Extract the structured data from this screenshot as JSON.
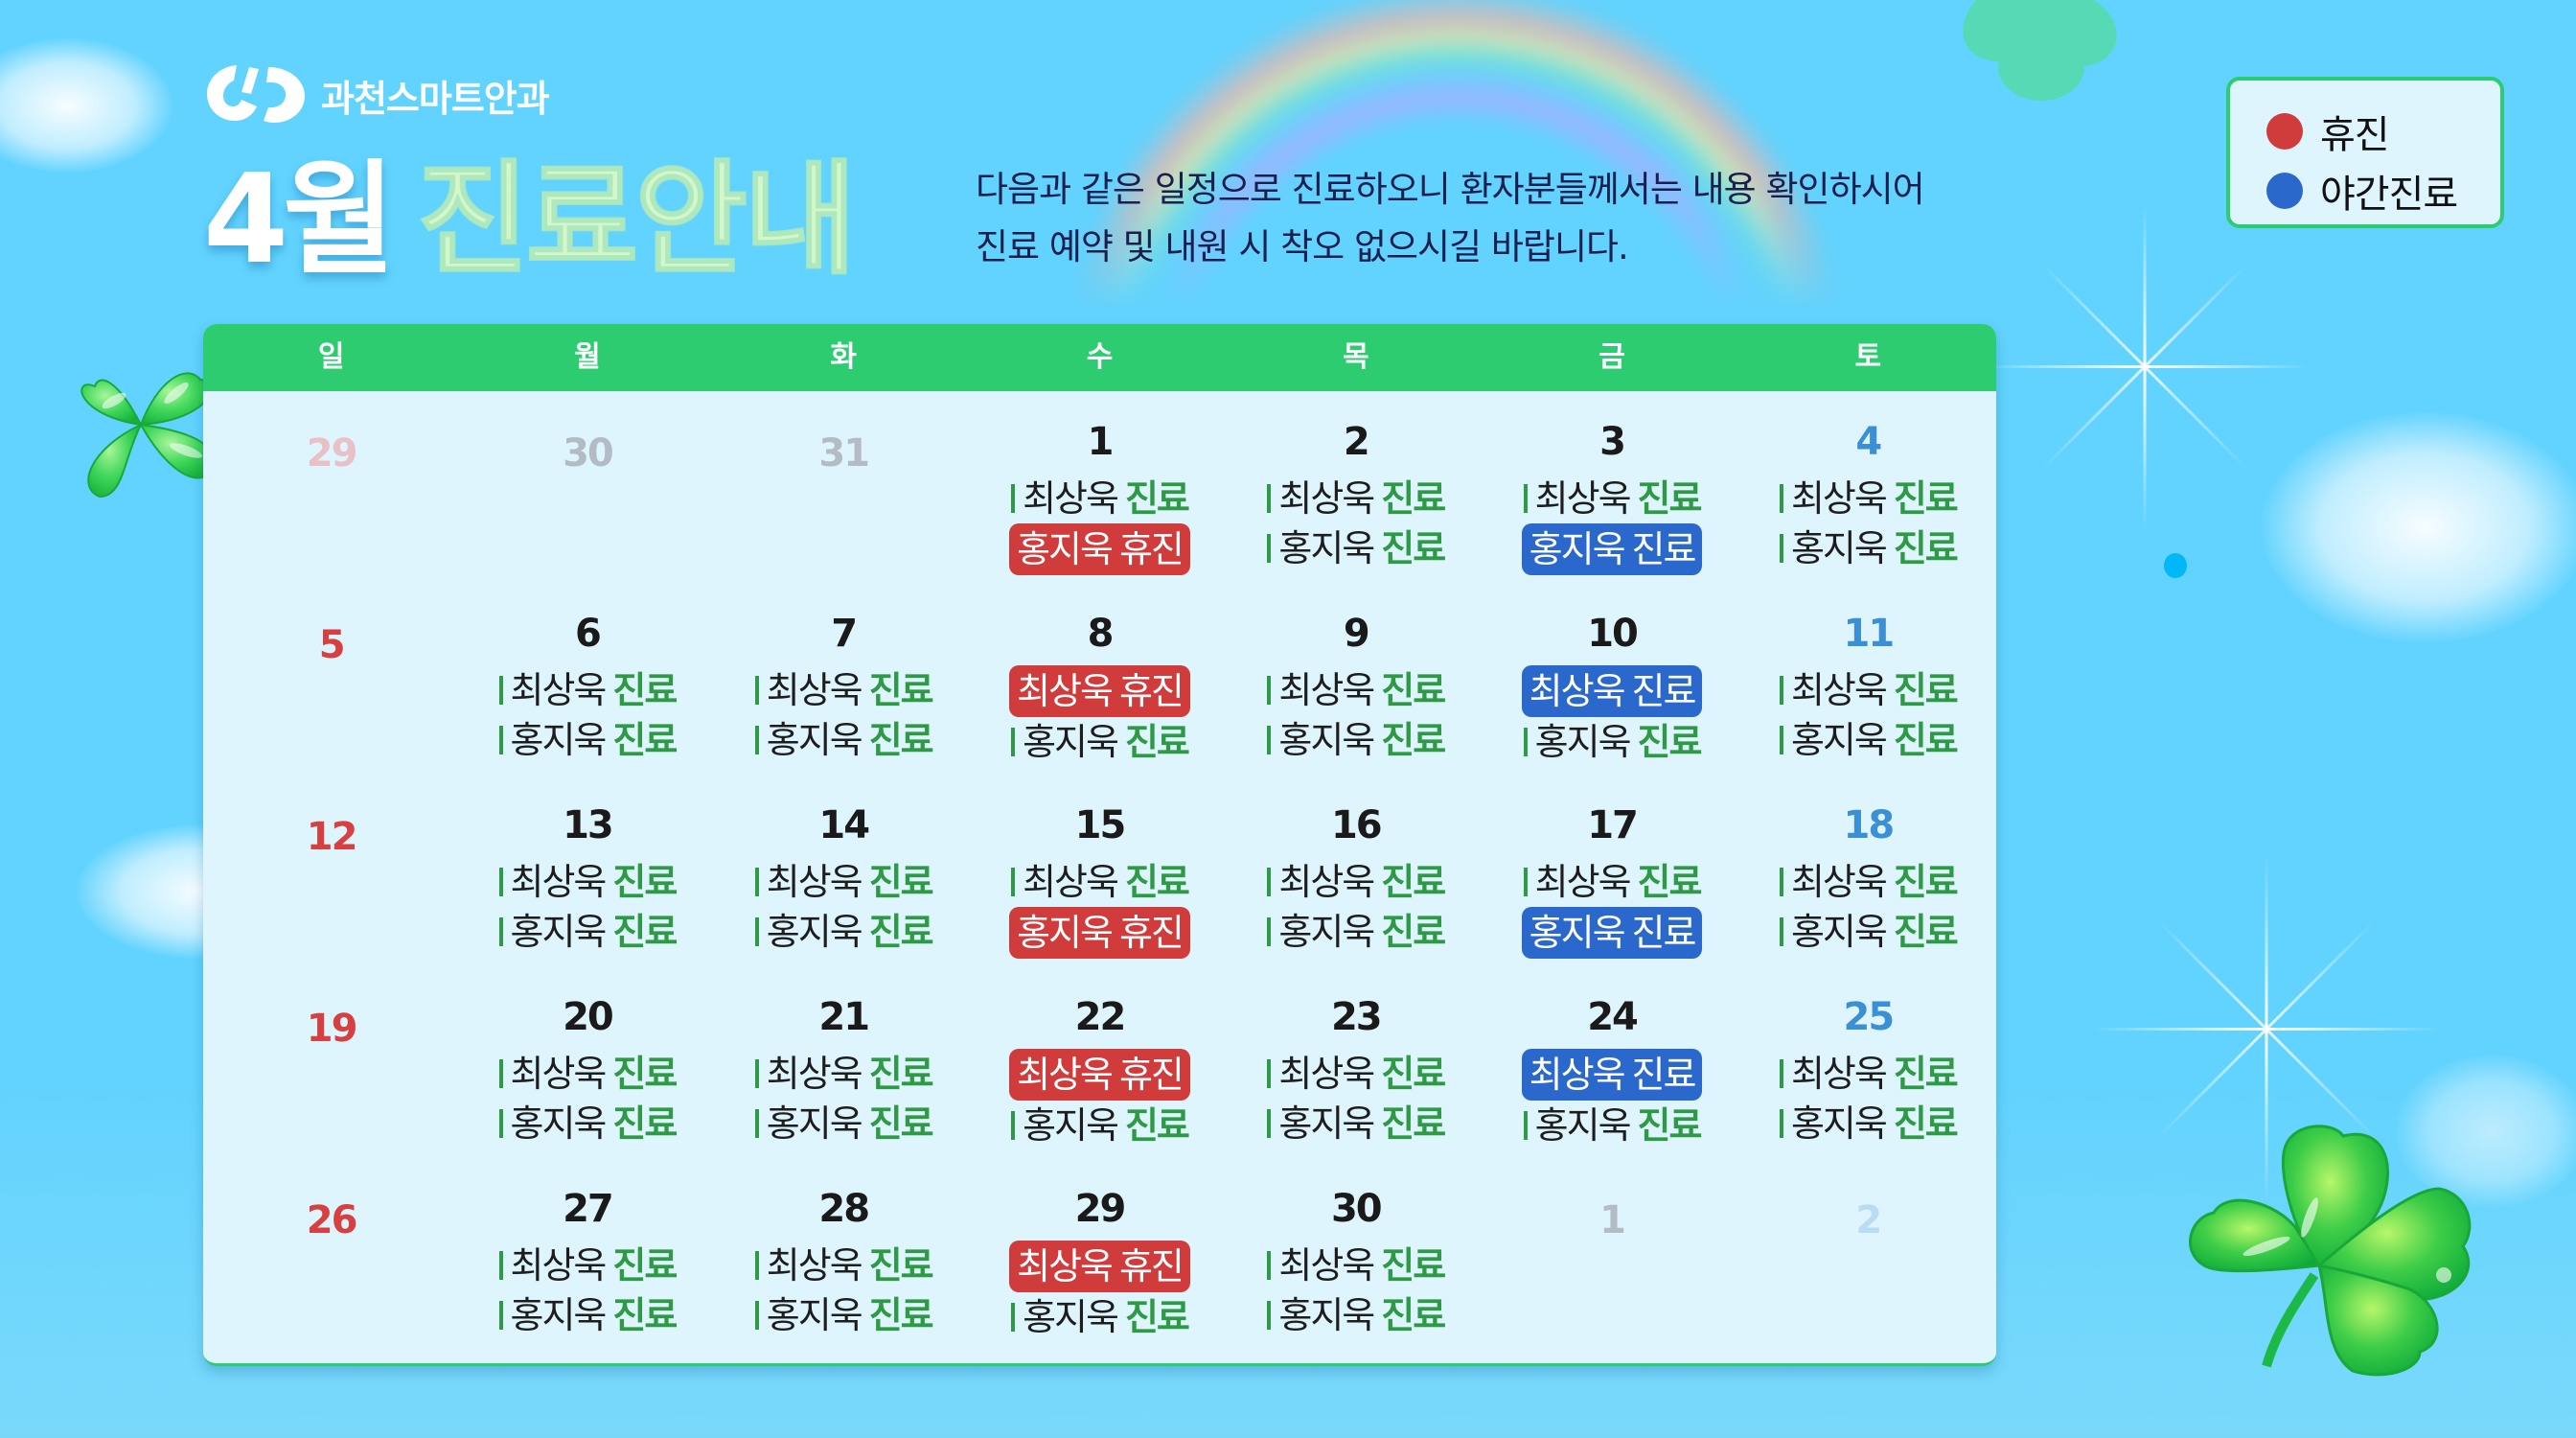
{
  "header": {
    "clinic_name": "과천스마트안과",
    "title_month": "4월",
    "title_main": "진료안내",
    "description_lines": [
      "다음과 같은 일정으로 진료하오니 환자분들께서는 내용 확인하시어",
      "진료 예약 및 내원 시 착오 없으시길 바랍니다."
    ]
  },
  "legend": {
    "items": [
      {
        "label": "휴진",
        "color": "#d03c3c",
        "icon": "red-dot-icon"
      },
      {
        "label": "야간진료",
        "color": "#2a68cc",
        "icon": "blue-dot-icon"
      }
    ]
  },
  "colors": {
    "header_green": "#2ecc71",
    "status_green": "#2e9a45",
    "closed_red": "#d03c3c",
    "night_blue": "#2a68cc",
    "sunday_red": "#d64040",
    "saturday_blue": "#3b8fd4",
    "background_sky": "#62d3fe",
    "calendar_bg": "#dff5fd"
  },
  "calendar": {
    "weekdays": [
      "일",
      "월",
      "화",
      "수",
      "목",
      "금",
      "토"
    ],
    "weeks": [
      [
        {
          "day": "29",
          "type": "prev",
          "entries": []
        },
        {
          "day": "30",
          "type": "prev",
          "entries": []
        },
        {
          "day": "31",
          "type": "prev",
          "entries": []
        },
        {
          "day": "1",
          "type": "cur",
          "entries": [
            {
              "doctor": "최상욱",
              "status": "진료",
              "style": "normal"
            },
            {
              "doctor": "홍지욱",
              "status": "휴진",
              "style": "closed"
            }
          ]
        },
        {
          "day": "2",
          "type": "cur",
          "entries": [
            {
              "doctor": "최상욱",
              "status": "진료",
              "style": "normal"
            },
            {
              "doctor": "홍지욱",
              "status": "진료",
              "style": "normal"
            }
          ]
        },
        {
          "day": "3",
          "type": "cur",
          "entries": [
            {
              "doctor": "최상욱",
              "status": "진료",
              "style": "normal"
            },
            {
              "doctor": "홍지욱",
              "status": "진료",
              "style": "night"
            }
          ]
        },
        {
          "day": "4",
          "type": "cur",
          "entries": [
            {
              "doctor": "최상욱",
              "status": "진료",
              "style": "normal"
            },
            {
              "doctor": "홍지욱",
              "status": "진료",
              "style": "normal"
            }
          ]
        }
      ],
      [
        {
          "day": "5",
          "type": "cur",
          "entries": []
        },
        {
          "day": "6",
          "type": "cur",
          "entries": [
            {
              "doctor": "최상욱",
              "status": "진료",
              "style": "normal"
            },
            {
              "doctor": "홍지욱",
              "status": "진료",
              "style": "normal"
            }
          ]
        },
        {
          "day": "7",
          "type": "cur",
          "entries": [
            {
              "doctor": "최상욱",
              "status": "진료",
              "style": "normal"
            },
            {
              "doctor": "홍지욱",
              "status": "진료",
              "style": "normal"
            }
          ]
        },
        {
          "day": "8",
          "type": "cur",
          "entries": [
            {
              "doctor": "최상욱",
              "status": "휴진",
              "style": "closed"
            },
            {
              "doctor": "홍지욱",
              "status": "진료",
              "style": "normal"
            }
          ]
        },
        {
          "day": "9",
          "type": "cur",
          "entries": [
            {
              "doctor": "최상욱",
              "status": "진료",
              "style": "normal"
            },
            {
              "doctor": "홍지욱",
              "status": "진료",
              "style": "normal"
            }
          ]
        },
        {
          "day": "10",
          "type": "cur",
          "entries": [
            {
              "doctor": "최상욱",
              "status": "진료",
              "style": "night"
            },
            {
              "doctor": "홍지욱",
              "status": "진료",
              "style": "normal"
            }
          ]
        },
        {
          "day": "11",
          "type": "cur",
          "entries": [
            {
              "doctor": "최상욱",
              "status": "진료",
              "style": "normal"
            },
            {
              "doctor": "홍지욱",
              "status": "진료",
              "style": "normal"
            }
          ]
        }
      ],
      [
        {
          "day": "12",
          "type": "cur",
          "entries": []
        },
        {
          "day": "13",
          "type": "cur",
          "entries": [
            {
              "doctor": "최상욱",
              "status": "진료",
              "style": "normal"
            },
            {
              "doctor": "홍지욱",
              "status": "진료",
              "style": "normal"
            }
          ]
        },
        {
          "day": "14",
          "type": "cur",
          "entries": [
            {
              "doctor": "최상욱",
              "status": "진료",
              "style": "normal"
            },
            {
              "doctor": "홍지욱",
              "status": "진료",
              "style": "normal"
            }
          ]
        },
        {
          "day": "15",
          "type": "cur",
          "entries": [
            {
              "doctor": "최상욱",
              "status": "진료",
              "style": "normal"
            },
            {
              "doctor": "홍지욱",
              "status": "휴진",
              "style": "closed"
            }
          ]
        },
        {
          "day": "16",
          "type": "cur",
          "entries": [
            {
              "doctor": "최상욱",
              "status": "진료",
              "style": "normal"
            },
            {
              "doctor": "홍지욱",
              "status": "진료",
              "style": "normal"
            }
          ]
        },
        {
          "day": "17",
          "type": "cur",
          "entries": [
            {
              "doctor": "최상욱",
              "status": "진료",
              "style": "normal"
            },
            {
              "doctor": "홍지욱",
              "status": "진료",
              "style": "night"
            }
          ]
        },
        {
          "day": "18",
          "type": "cur",
          "entries": [
            {
              "doctor": "최상욱",
              "status": "진료",
              "style": "normal"
            },
            {
              "doctor": "홍지욱",
              "status": "진료",
              "style": "normal"
            }
          ]
        }
      ],
      [
        {
          "day": "19",
          "type": "cur",
          "entries": []
        },
        {
          "day": "20",
          "type": "cur",
          "entries": [
            {
              "doctor": "최상욱",
              "status": "진료",
              "style": "normal"
            },
            {
              "doctor": "홍지욱",
              "status": "진료",
              "style": "normal"
            }
          ]
        },
        {
          "day": "21",
          "type": "cur",
          "entries": [
            {
              "doctor": "최상욱",
              "status": "진료",
              "style": "normal"
            },
            {
              "doctor": "홍지욱",
              "status": "진료",
              "style": "normal"
            }
          ]
        },
        {
          "day": "22",
          "type": "cur",
          "entries": [
            {
              "doctor": "최상욱",
              "status": "휴진",
              "style": "closed"
            },
            {
              "doctor": "홍지욱",
              "status": "진료",
              "style": "normal"
            }
          ]
        },
        {
          "day": "23",
          "type": "cur",
          "entries": [
            {
              "doctor": "최상욱",
              "status": "진료",
              "style": "normal"
            },
            {
              "doctor": "홍지욱",
              "status": "진료",
              "style": "normal"
            }
          ]
        },
        {
          "day": "24",
          "type": "cur",
          "entries": [
            {
              "doctor": "최상욱",
              "status": "진료",
              "style": "night"
            },
            {
              "doctor": "홍지욱",
              "status": "진료",
              "style": "normal"
            }
          ]
        },
        {
          "day": "25",
          "type": "cur",
          "entries": [
            {
              "doctor": "최상욱",
              "status": "진료",
              "style": "normal"
            },
            {
              "doctor": "홍지욱",
              "status": "진료",
              "style": "normal"
            }
          ]
        }
      ],
      [
        {
          "day": "26",
          "type": "cur",
          "entries": []
        },
        {
          "day": "27",
          "type": "cur",
          "entries": [
            {
              "doctor": "최상욱",
              "status": "진료",
              "style": "normal"
            },
            {
              "doctor": "홍지욱",
              "status": "진료",
              "style": "normal"
            }
          ]
        },
        {
          "day": "28",
          "type": "cur",
          "entries": [
            {
              "doctor": "최상욱",
              "status": "진료",
              "style": "normal"
            },
            {
              "doctor": "홍지욱",
              "status": "진료",
              "style": "normal"
            }
          ]
        },
        {
          "day": "29",
          "type": "cur",
          "entries": [
            {
              "doctor": "최상욱",
              "status": "휴진",
              "style": "closed"
            },
            {
              "doctor": "홍지욱",
              "status": "진료",
              "style": "normal"
            }
          ]
        },
        {
          "day": "30",
          "type": "cur",
          "entries": [
            {
              "doctor": "최상욱",
              "status": "진료",
              "style": "normal"
            },
            {
              "doctor": "홍지욱",
              "status": "진료",
              "style": "normal"
            }
          ]
        },
        {
          "day": "1",
          "type": "next",
          "entries": []
        },
        {
          "day": "2",
          "type": "next",
          "entries": []
        }
      ]
    ]
  }
}
